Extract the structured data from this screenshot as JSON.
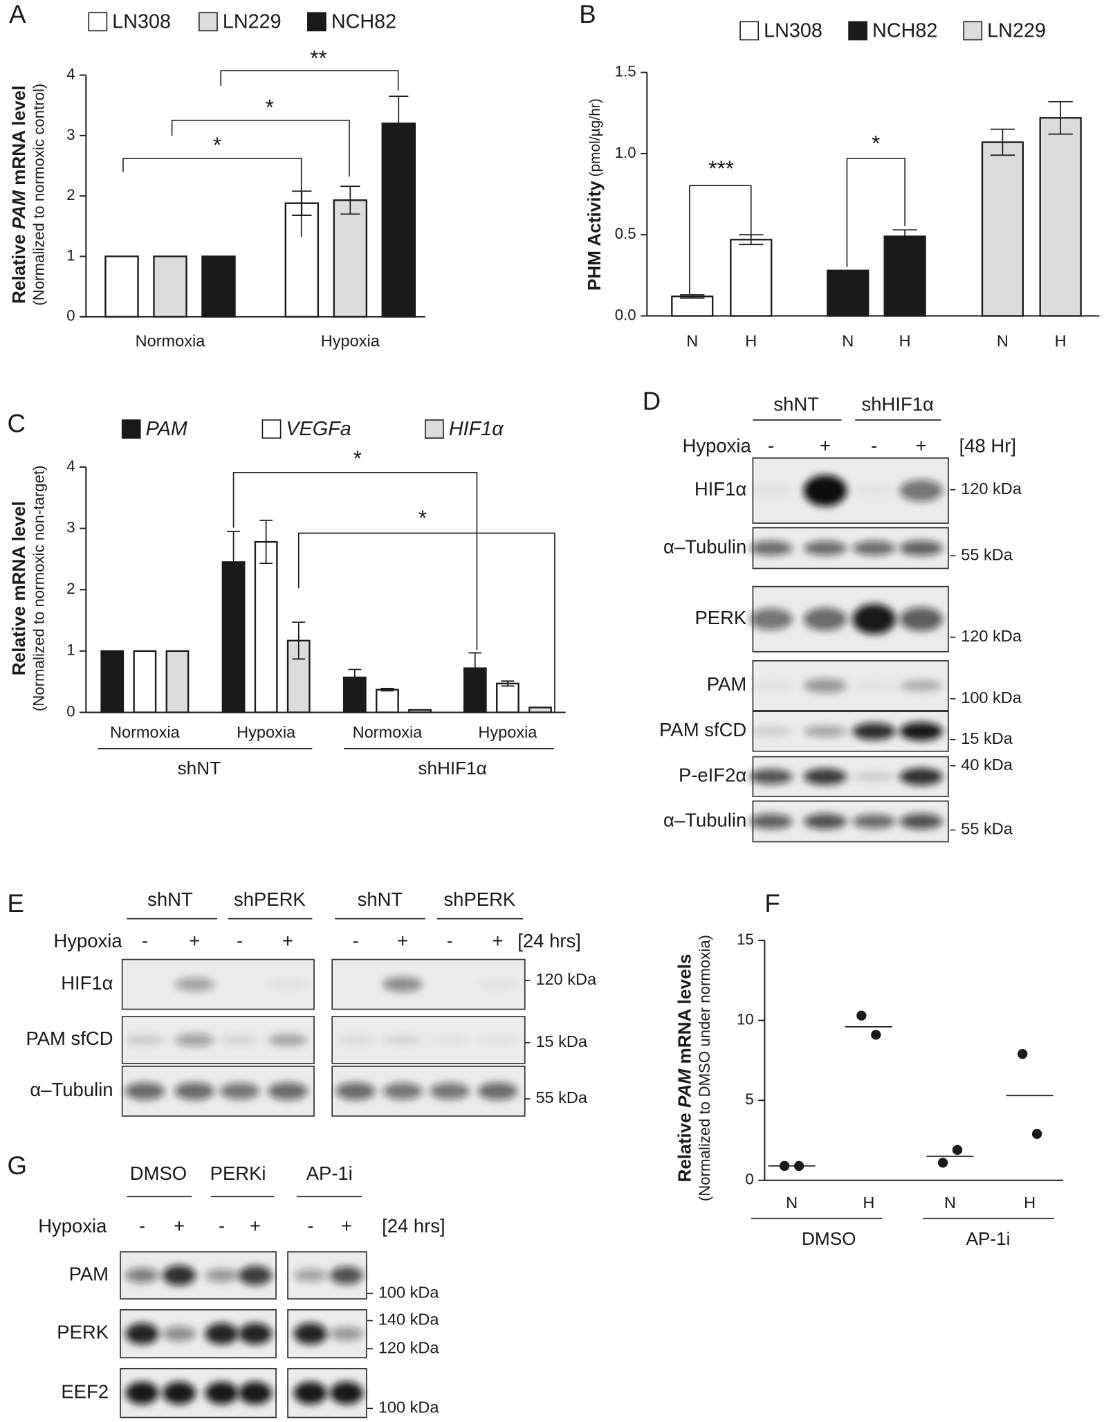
{
  "chart_data": [
    {
      "type": "bar",
      "panel": "A",
      "ylabel": [
        "Relative ",
        "PAM",
        " mRNA level"
      ],
      "ysublabel": "(Normalized to normoxic control)",
      "categories": [
        "Normoxia",
        "Hypoxia"
      ],
      "series": [
        {
          "name": "LN308",
          "color": "#ffffff",
          "values": [
            1,
            1.88
          ],
          "errors": [
            null,
            0.2
          ]
        },
        {
          "name": "LN229",
          "color": "#dcdcdc",
          "values": [
            1,
            1.93
          ],
          "errors": [
            null,
            0.23
          ]
        },
        {
          "name": "NCH82",
          "color": "#1a1a1a",
          "values": [
            1,
            3.2
          ],
          "errors": [
            null,
            0.45
          ]
        }
      ],
      "ylim": [
        0,
        4
      ],
      "yticks": [
        0,
        1,
        2,
        3,
        4
      ],
      "annotations": [
        "*",
        "*",
        "**"
      ]
    },
    {
      "type": "bar",
      "panel": "B",
      "ylabel": [
        "PHM Activity",
        " (pmol/µg/hr)"
      ],
      "categories": [
        "N",
        "H",
        "N",
        "H",
        "N",
        "H"
      ],
      "series": [
        {
          "name": "LN308",
          "color": "#ffffff",
          "values": [
            0.12,
            0.47,
            null,
            null,
            null,
            null
          ],
          "errors": [
            0.01,
            0.03,
            null,
            null,
            null,
            null
          ]
        },
        {
          "name": "NCH82",
          "color": "#1a1a1a",
          "values": [
            null,
            null,
            0.28,
            0.49,
            null,
            null
          ],
          "errors": [
            null,
            null,
            null,
            0.04,
            null,
            null
          ]
        },
        {
          "name": "LN229",
          "color": "#dcdcdc",
          "values": [
            null,
            null,
            null,
            null,
            1.07,
            1.22
          ],
          "errors": [
            null,
            null,
            null,
            null,
            0.08,
            0.1
          ]
        }
      ],
      "ylim": [
        0,
        1.5
      ],
      "yticks": [
        {
          "value": 0,
          "label": "0.0"
        },
        {
          "value": 0.5,
          "label": "0.5"
        },
        {
          "value": 1,
          "label": "1.0"
        },
        {
          "value": 1.5,
          "label": "1.5"
        }
      ],
      "annotations": [
        "***",
        "*"
      ]
    },
    {
      "type": "bar",
      "panel": "C",
      "ylabel": [
        "Relative mRNA level"
      ],
      "ysublabel": "(Normalized to normoxic non-target)",
      "categories": [
        "Normoxia",
        "Hypoxia",
        "Normoxia",
        "Hypoxia"
      ],
      "groups": [
        "shNT",
        "shHIF1α"
      ],
      "series": [
        {
          "name": "PAM",
          "color": "#1a1a1a",
          "values": [
            1,
            2.45,
            0.57,
            0.72
          ],
          "errors": [
            null,
            0.5,
            0.13,
            0.25
          ]
        },
        {
          "name": "VEGFa",
          "color": "#ffffff",
          "values": [
            1,
            2.78,
            0.37,
            0.47
          ],
          "errors": [
            null,
            0.35,
            0.02,
            0.04
          ]
        },
        {
          "name": "HIF1α",
          "color": "#dcdcdc",
          "values": [
            1,
            1.17,
            0.04,
            0.08
          ],
          "errors": [
            null,
            0.3,
            null,
            null
          ]
        }
      ],
      "ylim": [
        0,
        4
      ],
      "yticks": [
        0,
        1,
        2,
        3,
        4
      ],
      "annotations": [
        "*",
        "*"
      ]
    },
    {
      "type": "scatter",
      "panel": "F",
      "ylabel": [
        "Relative ",
        "PAM",
        " mRNA levels"
      ],
      "ysublabel": "(Normalized to DMSO under normoxia)",
      "categories": [
        "N",
        "H",
        "N",
        "H"
      ],
      "groups": [
        "DMSO",
        "AP-1i"
      ],
      "color": "#1a1a1a",
      "values": [
        [
          0.9,
          0.9
        ],
        [
          10.3,
          9.1
        ],
        [
          1.1,
          1.9
        ],
        [
          7.9,
          2.9
        ]
      ],
      "means": [
        0.9,
        9.6,
        1.5,
        5.3
      ],
      "ylim": [
        0,
        15
      ],
      "yticks": [
        0,
        5,
        10,
        15
      ]
    }
  ],
  "blots": [
    {
      "panel": "D",
      "groups": [
        "shNT",
        "shHIF1α"
      ],
      "condition": "Hypoxia",
      "lanes": [
        "-",
        "+",
        "-",
        "+"
      ],
      "duration": "[48 Hr]",
      "rows": [
        {
          "label": "HIF1α",
          "markers": [
            "120 kDa"
          ]
        },
        {
          "label": "α–Tubulin",
          "markers": [
            "55 kDa"
          ]
        },
        {
          "label": "PERK",
          "markers": [
            "120 kDa"
          ]
        },
        {
          "label": "PAM",
          "markers": [
            "100 kDa"
          ]
        },
        {
          "label": "PAM sfCD",
          "markers": [
            "15 kDa"
          ]
        },
        {
          "label": "P-eIF2α",
          "markers": [
            "40 kDa"
          ]
        },
        {
          "label": "α–Tubulin",
          "markers": [
            "55 kDa"
          ]
        }
      ]
    },
    {
      "panel": "E",
      "groups": [
        "shNT",
        "shPERK",
        "shNT",
        "shPERK"
      ],
      "condition": "Hypoxia",
      "lanes": [
        "-",
        "+",
        "-",
        "+",
        "-",
        "+",
        "-",
        "+"
      ],
      "duration": "[24 hrs]",
      "rows": [
        {
          "label": "HIF1α",
          "markers": [
            "120 kDa"
          ]
        },
        {
          "label": "PAM sfCD",
          "markers": [
            "15 kDa"
          ]
        },
        {
          "label": "α–Tubulin",
          "markers": [
            "55 kDa"
          ]
        }
      ]
    },
    {
      "panel": "G",
      "groups": [
        "DMSO",
        "PERKi",
        "AP-1i"
      ],
      "condition": "Hypoxia",
      "lanes": [
        "-",
        "+",
        "-",
        "+",
        "-",
        "+"
      ],
      "duration": "[24 hrs]",
      "rows": [
        {
          "label": "PAM",
          "markers": [
            "100 kDa"
          ]
        },
        {
          "label": "PERK",
          "markers": [
            "140 kDa",
            "120 kDa"
          ]
        },
        {
          "label": "EEF2",
          "markers": [
            "100 kDa"
          ]
        }
      ]
    }
  ]
}
